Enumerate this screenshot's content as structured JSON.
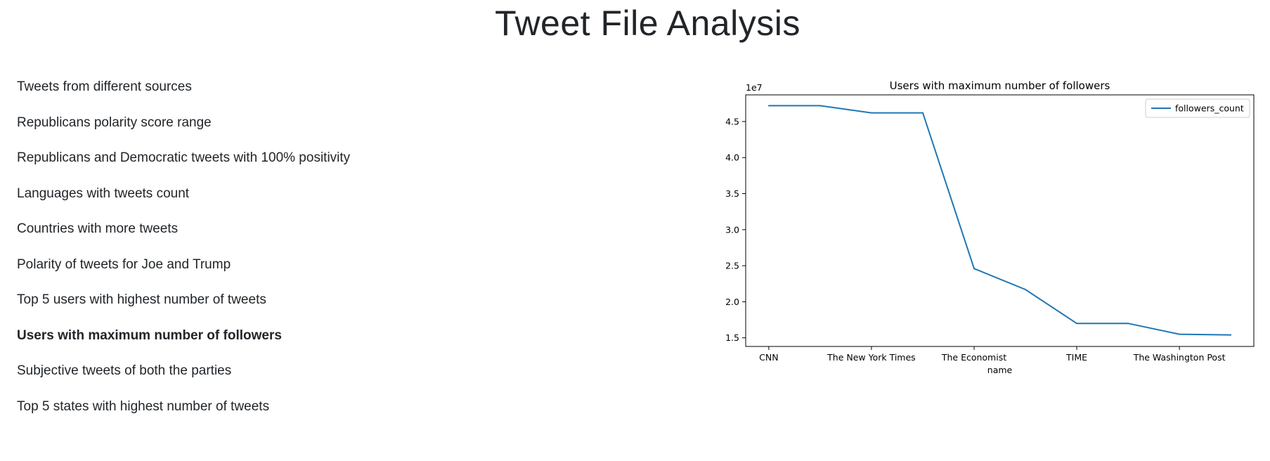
{
  "page": {
    "title": "Tweet File Analysis"
  },
  "menu": {
    "items": [
      {
        "label": "Tweets from different sources",
        "active": false
      },
      {
        "label": "Republicans polarity score range",
        "active": false
      },
      {
        "label": "Republicans and Democratic tweets with 100% positivity",
        "active": false
      },
      {
        "label": "Languages with tweets count",
        "active": false
      },
      {
        "label": "Countries with more tweets",
        "active": false
      },
      {
        "label": "Polarity of tweets for Joe and Trump",
        "active": false
      },
      {
        "label": "Top 5 users with highest number of tweets",
        "active": false
      },
      {
        "label": "Users with maximum number of followers",
        "active": true
      },
      {
        "label": "Subjective tweets of both the parties",
        "active": false
      },
      {
        "label": "Top 5 states with highest number of tweets",
        "active": false
      }
    ]
  },
  "chart_data": {
    "type": "line",
    "title": "Users with maximum number of followers",
    "xlabel": "name",
    "ylabel": "",
    "y_offset_label": "1e7",
    "x": [
      0,
      1,
      2,
      3,
      4,
      5,
      6,
      7,
      8,
      9
    ],
    "xticks": [
      0,
      2,
      4,
      6,
      8
    ],
    "xtick_labels": [
      "CNN",
      "The New York Times",
      "The Economist",
      "TIME",
      "The Washington Post"
    ],
    "yticks": [
      1.5,
      2.0,
      2.5,
      3.0,
      3.5,
      4.0,
      4.5
    ],
    "ytick_labels": [
      "1.5",
      "2.0",
      "2.5",
      "3.0",
      "3.5",
      "4.0",
      "4.5"
    ],
    "xlim": [
      -0.45,
      9.45
    ],
    "ylim": [
      1.38,
      4.87
    ],
    "series": [
      {
        "name": "followers_count",
        "color": "#1f77b4",
        "values": [
          4.72,
          4.72,
          4.62,
          4.62,
          2.46,
          2.17,
          1.7,
          1.7,
          1.55,
          1.54
        ]
      }
    ],
    "legend": "upper right",
    "grid": false
  }
}
